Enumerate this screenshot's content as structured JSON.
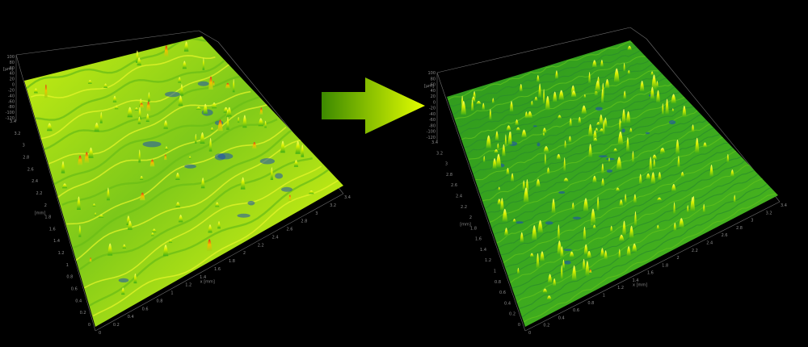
{
  "colors": {
    "background": "#000000",
    "frame_line": "#6e6e6e",
    "tick_text": "#8a8a8a",
    "arrow_start": "#3c8a00",
    "arrow_end": "#e4ff00",
    "surface_low": "#1d4fb0",
    "surface_mid": "#3fae17",
    "surface_high": "#d8f000",
    "surface_peak": "#e2231a"
  },
  "arrow": {
    "icon": "right-arrow-icon",
    "meaning": "before-to-after"
  },
  "surfaces": [
    {
      "name": "before",
      "z_ticks": [
        "100",
        "80",
        "60",
        "40",
        "20",
        "0",
        "-20",
        "-40",
        "-60",
        "-80",
        "-100",
        "-120"
      ],
      "z_unit": "[µm]",
      "y_ticks": [
        "0",
        "0.2",
        "0.4",
        "0.6",
        "0.8",
        "1",
        "1.2",
        "1.4",
        "1.6",
        "1.8",
        "2",
        "2.2",
        "2.4",
        "2.6",
        "2.8",
        "3",
        "3.2",
        "3.4"
      ],
      "y_unit": "[mm]",
      "x_ticks": [
        "0",
        "0.2",
        "0.4",
        "0.6",
        "0.8",
        "1",
        "1.2",
        "1.4",
        "1.6",
        "1.8",
        "2",
        "2.2",
        "2.4",
        "2.6",
        "2.8",
        "3",
        "3.2",
        "3.4"
      ],
      "x_unit": "x [mm]",
      "texture": "wavy-ridges",
      "peak_level": "high"
    },
    {
      "name": "after",
      "z_ticks": [
        "100",
        "80",
        "60",
        "40",
        "20",
        "0",
        "-20",
        "-40",
        "-60",
        "-80",
        "-100",
        "-120"
      ],
      "z_unit": "[µm]",
      "y_ticks": [
        "0",
        "0.2",
        "0.4",
        "0.6",
        "0.8",
        "1",
        "1.2",
        "1.4",
        "1.6",
        "1.8",
        "2",
        "2.2",
        "2.4",
        "2.6",
        "2.8",
        "3",
        "3.2",
        "3.4"
      ],
      "y_unit": "[mm]",
      "x_ticks": [
        "0",
        "0.2",
        "0.4",
        "0.6",
        "0.8",
        "1",
        "1.2",
        "1.4",
        "1.6",
        "1.8",
        "2",
        "2.2",
        "2.4",
        "2.6",
        "2.8",
        "3",
        "3.2",
        "3.4"
      ],
      "x_unit": "x [mm]",
      "texture": "fine-spiky",
      "peak_level": "medium"
    }
  ]
}
